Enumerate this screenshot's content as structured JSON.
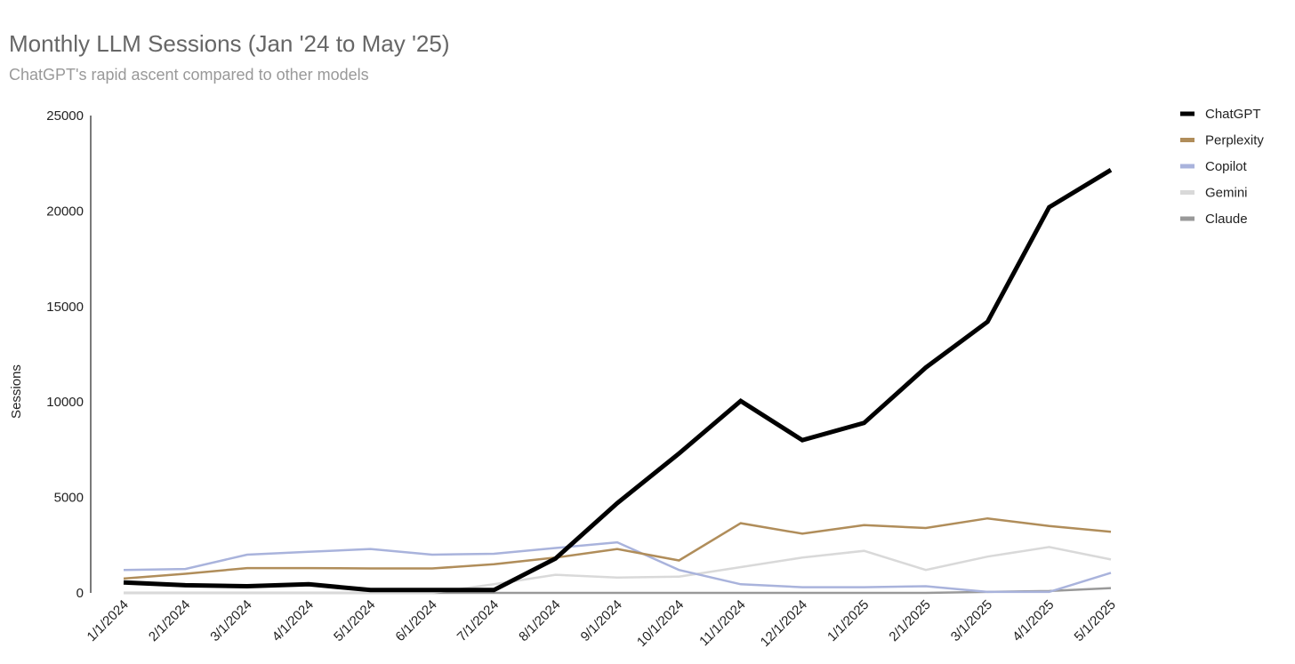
{
  "header": {
    "title": "Monthly LLM Sessions (Jan '24 to May '25)",
    "subtitle": "ChatGPT's rapid ascent compared to other models"
  },
  "chart_data": {
    "type": "line",
    "title": "Monthly LLM Sessions (Jan '24 to May '25)",
    "subtitle": "ChatGPT's rapid ascent compared to other models",
    "xlabel": "",
    "ylabel": "Sessions",
    "ylim": [
      0,
      25000
    ],
    "yticks": [
      0,
      5000,
      10000,
      15000,
      20000,
      25000
    ],
    "grid": false,
    "legend": "right",
    "categories": [
      "1/1/2024",
      "2/1/2024",
      "3/1/2024",
      "4/1/2024",
      "5/1/2024",
      "6/1/2024",
      "7/1/2024",
      "8/1/2024",
      "9/1/2024",
      "10/1/2024",
      "11/1/2024",
      "12/1/2024",
      "1/1/2025",
      "2/1/2025",
      "3/1/2025",
      "4/1/2025",
      "5/1/2025"
    ],
    "series": [
      {
        "name": "ChatGPT",
        "color": "#000000",
        "width": 5,
        "values": [
          550,
          400,
          350,
          450,
          150,
          150,
          150,
          1800,
          4700,
          7300,
          10050,
          8000,
          8900,
          11800,
          14200,
          20200,
          22150
        ]
      },
      {
        "name": "Perplexity",
        "color": "#b08d5a",
        "width": 2.5,
        "values": [
          750,
          1000,
          1300,
          1300,
          1280,
          1280,
          1500,
          1850,
          2300,
          1700,
          3650,
          3100,
          3550,
          3400,
          3900,
          3500,
          3200
        ]
      },
      {
        "name": "Copilot",
        "color": "#a9b3dc",
        "width": 2.5,
        "values": [
          1200,
          1250,
          2000,
          2150,
          2300,
          2000,
          2050,
          2350,
          2650,
          1200,
          450,
          300,
          300,
          350,
          50,
          50,
          1050
        ]
      },
      {
        "name": "Gemini",
        "color": "#d9d9d9",
        "width": 2.5,
        "values": [
          0,
          0,
          0,
          0,
          0,
          0,
          450,
          950,
          800,
          850,
          1350,
          1850,
          2200,
          1200,
          1900,
          2400,
          1750
        ]
      },
      {
        "name": "Claude",
        "color": "#999999",
        "width": 2.5,
        "values": [
          0,
          0,
          0,
          0,
          0,
          0,
          0,
          0,
          0,
          0,
          0,
          0,
          0,
          0,
          50,
          100,
          250
        ]
      }
    ]
  }
}
